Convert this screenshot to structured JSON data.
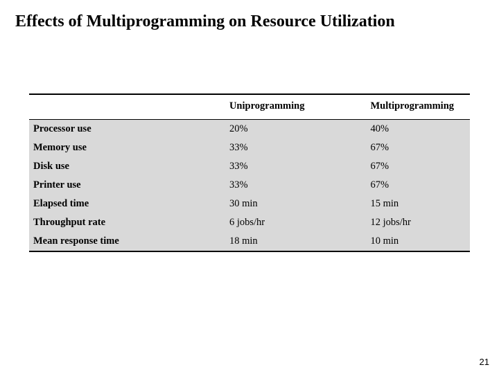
{
  "title": "Effects of Multiprogramming on Resource Utilization",
  "page_number": "21",
  "table": {
    "columns": [
      "",
      "Uniprogramming",
      "Multiprogramming"
    ],
    "rows": [
      {
        "label": "Processor use",
        "uni": "20%",
        "multi": "40%"
      },
      {
        "label": "Memory use",
        "uni": "33%",
        "multi": "67%"
      },
      {
        "label": "Disk use",
        "uni": "33%",
        "multi": "67%"
      },
      {
        "label": "Printer use",
        "uni": "33%",
        "multi": "67%"
      },
      {
        "label": "Elapsed time",
        "uni": "30 min",
        "multi": "15 min"
      },
      {
        "label": "Throughput rate",
        "uni": "6 jobs/hr",
        "multi": "12 jobs/hr"
      },
      {
        "label": "Mean response time",
        "uni": "18 min",
        "multi": "10 min"
      }
    ],
    "body_bg": "#d9d9d9",
    "border_color": "#000000"
  }
}
